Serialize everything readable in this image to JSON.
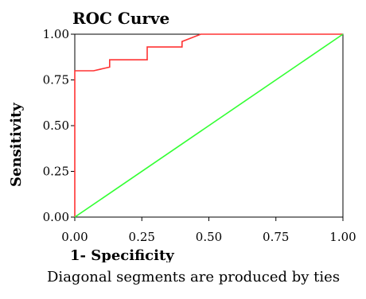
{
  "chart_data": {
    "type": "line",
    "title": "ROC Curve",
    "xlabel": "1- Specificity",
    "ylabel": "Sensitivity",
    "xlim": [
      0,
      1
    ],
    "ylim": [
      0,
      1
    ],
    "xticks": [
      "0.00",
      "0.25",
      "0.50",
      "0.75",
      "1.00"
    ],
    "yticks": [
      "0.00",
      "0.25",
      "0.50",
      "0.75",
      "1.00"
    ],
    "footnote": "Diagonal segments are produced by ties",
    "grid": false,
    "series": [
      {
        "color": "#ff3333",
        "x": [
          0,
          0,
          0.07,
          0.13,
          0.13,
          0.27,
          0.27,
          0.4,
          0.4,
          0.47,
          1
        ],
        "y": [
          0,
          0.8,
          0.8,
          0.82,
          0.86,
          0.86,
          0.93,
          0.93,
          0.96,
          1,
          1
        ]
      },
      {
        "color": "#33ff33",
        "x": [
          0,
          1
        ],
        "y": [
          0,
          1
        ]
      }
    ]
  }
}
